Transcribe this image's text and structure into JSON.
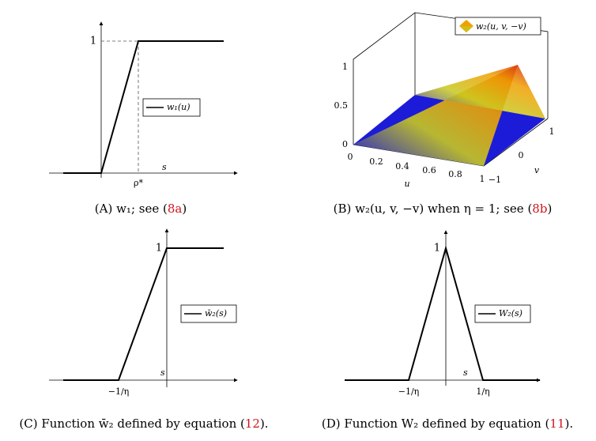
{
  "panels": [
    {
      "y_tick": "1",
      "x_tick": "ρ*",
      "x_label": "s",
      "legend": "w₁(u)",
      "caption": {
        "before": "(A) w₁; see (",
        "ref": "8a",
        "after": ")"
      }
    },
    {
      "z_ticks": [
        "0",
        "0.5",
        "1"
      ],
      "u_ticks": [
        "0",
        "0.2",
        "0.4",
        "0.6",
        "0.8",
        "1"
      ],
      "v_ticks": [
        "−1",
        "0",
        "1"
      ],
      "u_label": "u",
      "v_label": "v",
      "legend": "w₂(u, v, −v)",
      "caption": {
        "before": "(B) w₂(u, v, −v) when η = 1; see (",
        "ref": "8b",
        "after": ")"
      }
    },
    {
      "y_tick": "1",
      "x_tick": "−1/η",
      "x_label": "s",
      "legend": "w̄₂(s)",
      "caption": {
        "before": "(C) Function w̄₂ defined by equation (",
        "ref": "12",
        "after": ")."
      }
    },
    {
      "y_tick": "1",
      "x_ticks": [
        "−1/η",
        "1/η"
      ],
      "x_label": "s",
      "legend": "W₂(s)",
      "caption": {
        "before": "(D) Function W₂ defined by equation (",
        "ref": "11",
        "after": ")."
      }
    }
  ]
}
